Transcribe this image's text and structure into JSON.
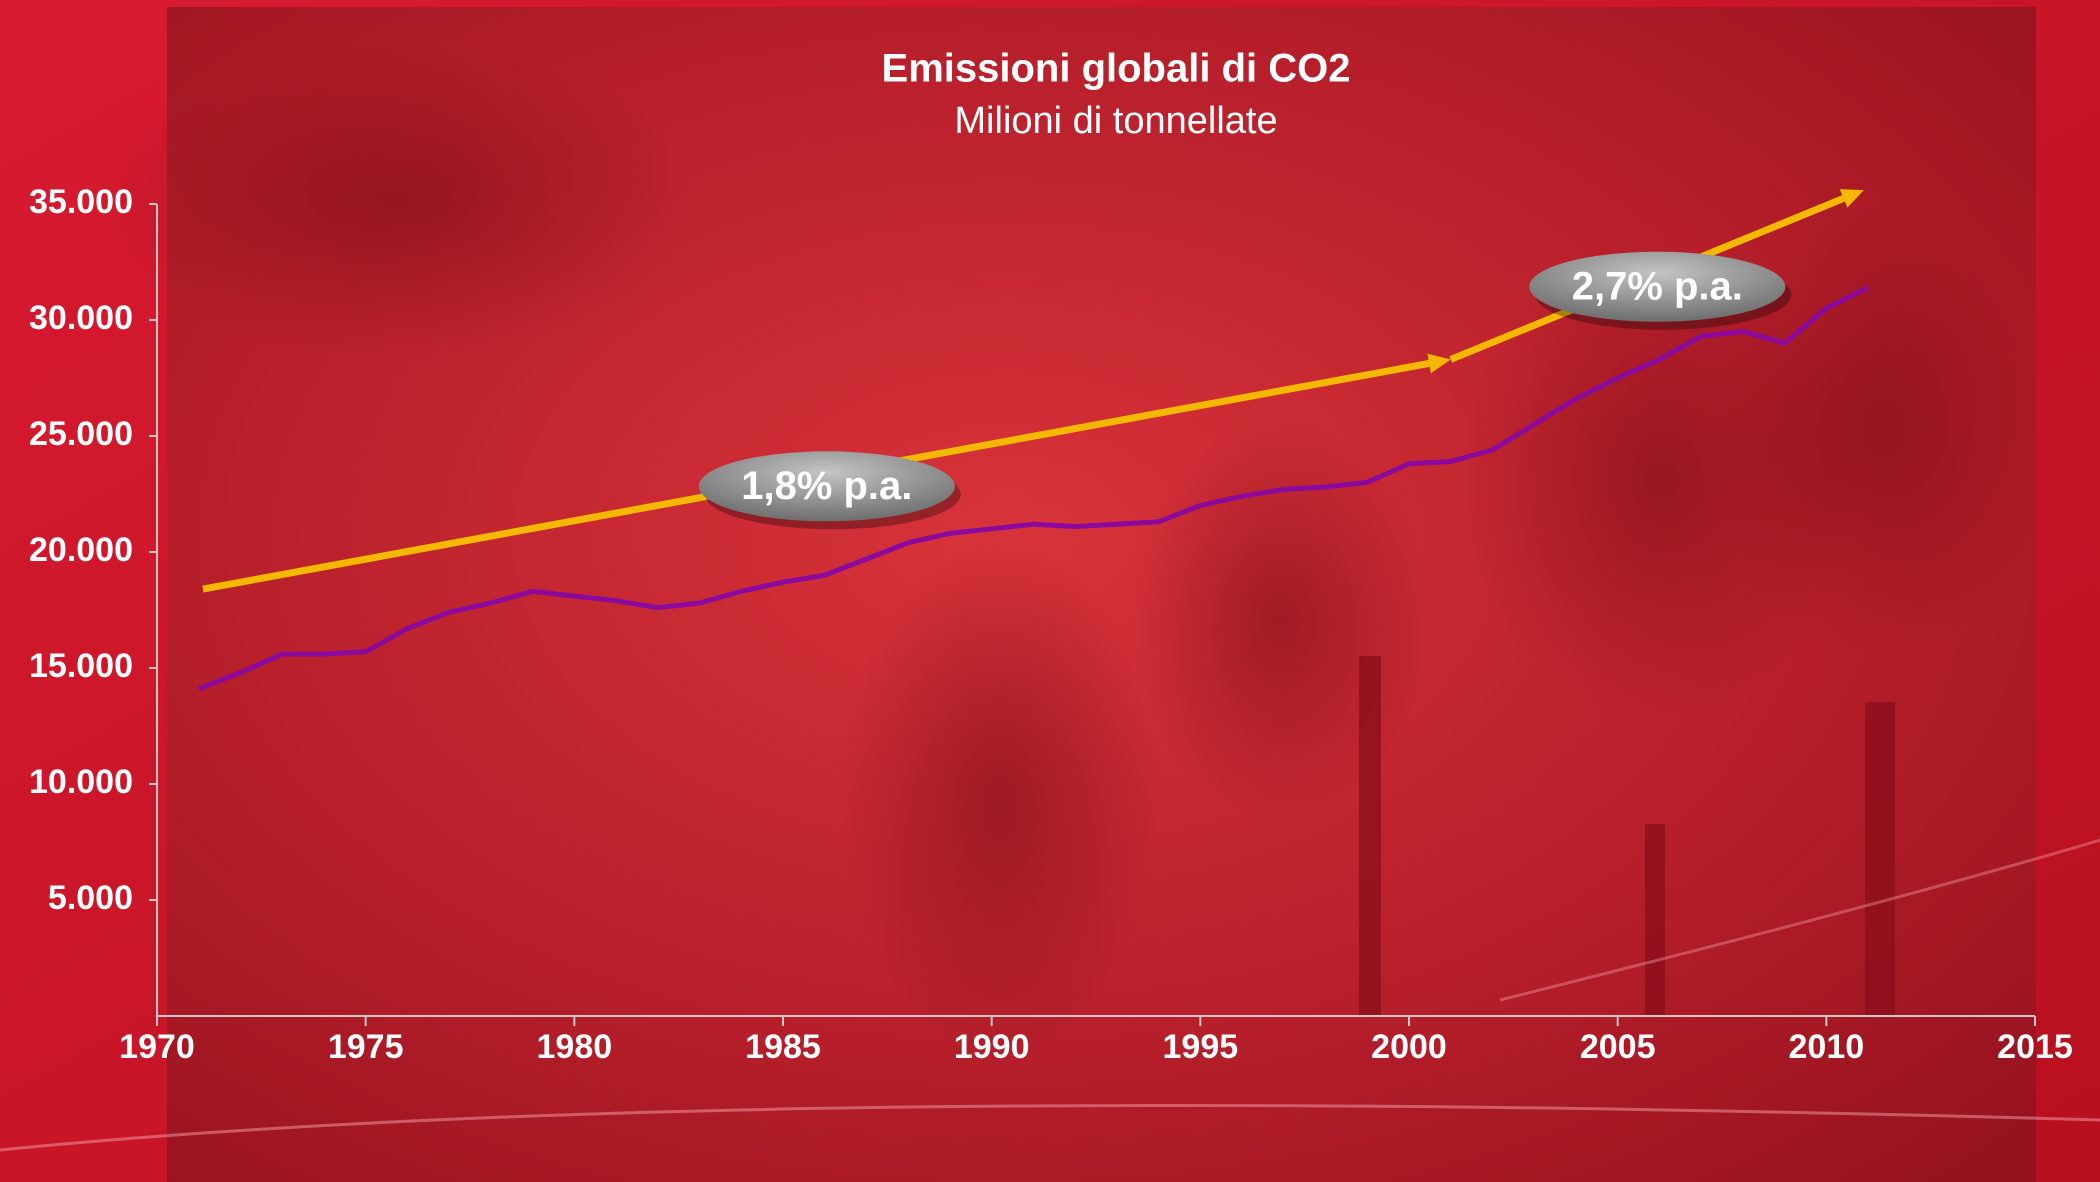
{
  "chart_data": {
    "type": "line",
    "title": "Emissioni globali di CO2",
    "subtitle": "Milioni di tonnellate",
    "x": [
      1971,
      1972,
      1973,
      1974,
      1975,
      1976,
      1977,
      1978,
      1979,
      1980,
      1981,
      1982,
      1983,
      1984,
      1985,
      1986,
      1987,
      1988,
      1989,
      1990,
      1991,
      1992,
      1993,
      1994,
      1995,
      1996,
      1997,
      1998,
      1999,
      2000,
      2001,
      2002,
      2003,
      2004,
      2005,
      2006,
      2007,
      2008,
      2009,
      2010,
      2011
    ],
    "values": [
      14100,
      14800,
      15600,
      15600,
      15700,
      16700,
      17400,
      17800,
      18300,
      18100,
      17900,
      17600,
      17800,
      18300,
      18700,
      19000,
      19700,
      20400,
      20800,
      21000,
      21200,
      21100,
      21200,
      21300,
      22000,
      22400,
      22700,
      22800,
      23000,
      23800,
      23900,
      24400,
      25500,
      26600,
      27500,
      28300,
      29300,
      29500,
      29000,
      30500,
      31400
    ],
    "color": "#8a0a9e",
    "xlim": [
      1970,
      2015
    ],
    "xticks": [
      1970,
      1975,
      1980,
      1985,
      1990,
      1995,
      2000,
      2005,
      2010,
      2015
    ],
    "ylim": [
      0,
      35000
    ],
    "yticks": [
      {
        "value": 5000,
        "label": "5.000"
      },
      {
        "value": 10000,
        "label": "10.000"
      },
      {
        "value": 15000,
        "label": "15.000"
      },
      {
        "value": 20000,
        "label": "20.000"
      },
      {
        "value": 25000,
        "label": "25.000"
      },
      {
        "value": 30000,
        "label": "30.000"
      },
      {
        "value": 35000,
        "label": "35.000"
      }
    ],
    "annotations": [
      {
        "label": "1,8% p.a.",
        "x": [
          1971.1,
          2001
        ],
        "y": [
          18400,
          28300
        ],
        "color": "#f5b800"
      },
      {
        "label": "2,7% p.a.",
        "x": [
          2001,
          2010.9
        ],
        "y": [
          28300,
          35600
        ],
        "color": "#f5b800"
      }
    ]
  }
}
